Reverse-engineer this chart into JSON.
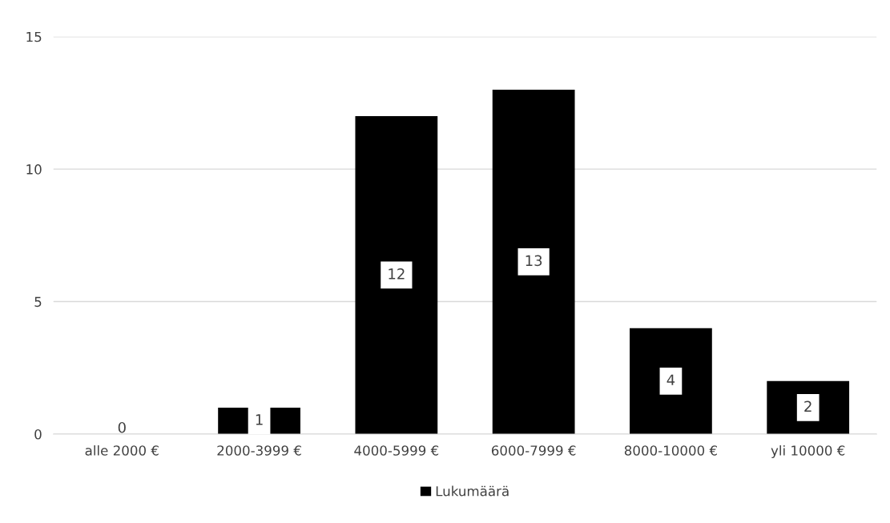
{
  "chart_data": {
    "type": "bar",
    "categories": [
      "alle 2000 €",
      "2000-3999 €",
      "4000-5999 €",
      "6000-7999 €",
      "8000-10000 €",
      "yli 10000 €"
    ],
    "series": [
      {
        "name": "Lukumäärä",
        "color": "#000000",
        "values": [
          0,
          1,
          12,
          13,
          4,
          2
        ]
      }
    ],
    "ylim": [
      0,
      15
    ],
    "yticks": [
      0,
      5,
      10,
      15
    ],
    "grid": "y",
    "legend": "bottom",
    "data_labels": true
  }
}
